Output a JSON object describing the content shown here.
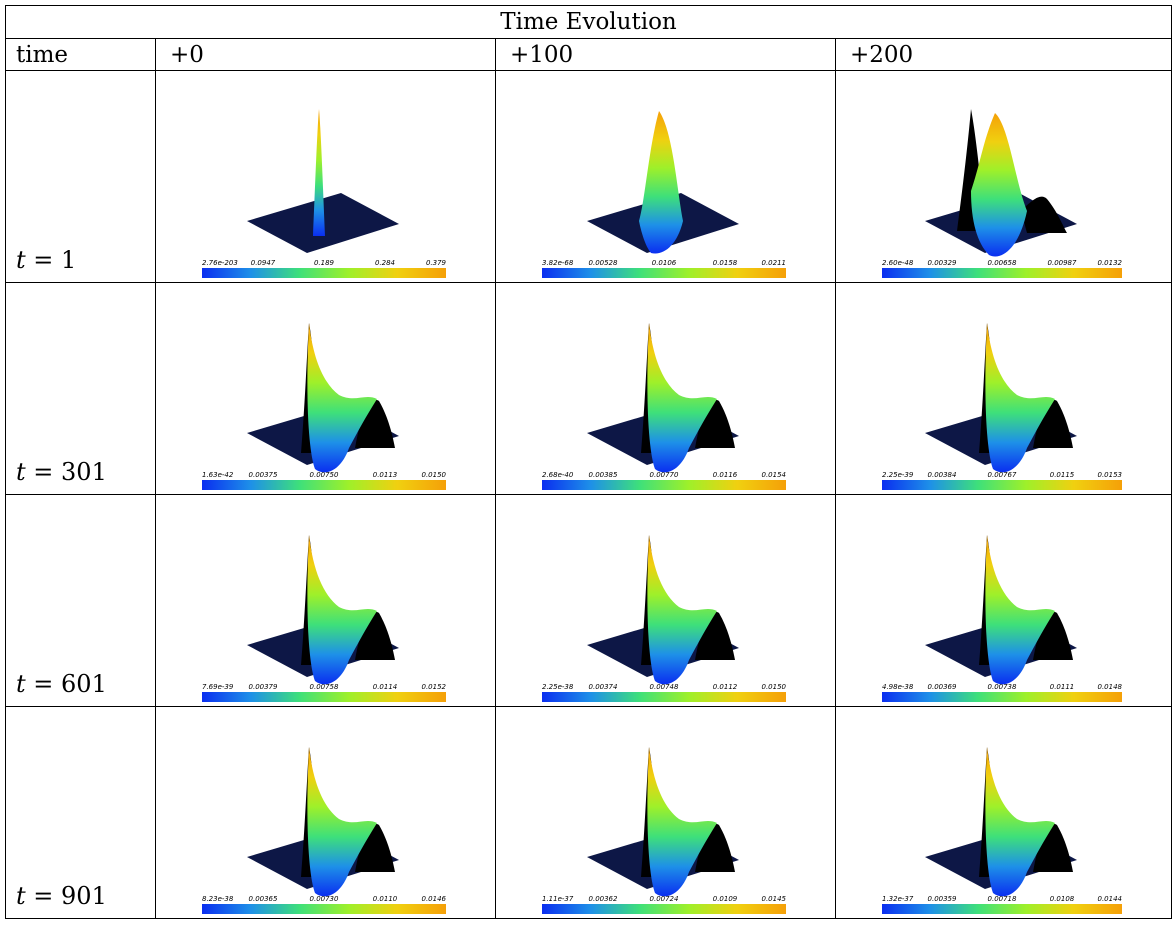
{
  "table": {
    "title": "Time Evolution",
    "header": [
      "time",
      "+0",
      "+100",
      "+200"
    ],
    "rows": [
      {
        "t_var": "t",
        "t_eq": "= 1",
        "panels": [
          {
            "peak_type": "spike",
            "ticks": [
              "2.76e-203",
              "0.0947",
              "0.189",
              "0.284",
              "0.379"
            ]
          },
          {
            "peak_type": "single",
            "ticks": [
              "3.82e-68",
              "0.00528",
              "0.0106",
              "0.0158",
              "0.0211"
            ]
          },
          {
            "peak_type": "double",
            "ticks": [
              "2.60e-48",
              "0.00329",
              "0.00658",
              "0.00987",
              "0.0132"
            ]
          }
        ]
      },
      {
        "t_var": "t",
        "t_eq": "= 301",
        "panels": [
          {
            "peak_type": "wave",
            "ticks": [
              "1.63e-42",
              "0.00375",
              "0.00750",
              "0.0113",
              "0.0150"
            ]
          },
          {
            "peak_type": "wave",
            "ticks": [
              "2.68e-40",
              "0.00385",
              "0.00770",
              "0.0116",
              "0.0154"
            ]
          },
          {
            "peak_type": "wave",
            "ticks": [
              "2.25e-39",
              "0.00384",
              "0.00767",
              "0.0115",
              "0.0153"
            ]
          }
        ]
      },
      {
        "t_var": "t",
        "t_eq": "= 601",
        "panels": [
          {
            "peak_type": "wave",
            "ticks": [
              "7.69e-39",
              "0.00379",
              "0.00758",
              "0.0114",
              "0.0152"
            ]
          },
          {
            "peak_type": "wave",
            "ticks": [
              "2.25e-38",
              "0.00374",
              "0.00748",
              "0.0112",
              "0.0150"
            ]
          },
          {
            "peak_type": "wave",
            "ticks": [
              "4.98e-38",
              "0.00369",
              "0.00738",
              "0.0111",
              "0.0148"
            ]
          }
        ]
      },
      {
        "t_var": "t",
        "t_eq": "= 901",
        "panels": [
          {
            "peak_type": "wave",
            "ticks": [
              "8.23e-38",
              "0.00365",
              "0.00730",
              "0.0110",
              "0.0146"
            ]
          },
          {
            "peak_type": "wave",
            "ticks": [
              "1.11e-37",
              "0.00362",
              "0.00724",
              "0.0109",
              "0.0145"
            ]
          },
          {
            "peak_type": "wave",
            "ticks": [
              "1.32e-37",
              "0.00359",
              "0.00718",
              "0.0108",
              "0.0144"
            ]
          }
        ]
      }
    ]
  },
  "colors": {
    "colormap": [
      "#0a2ef0",
      "#1e90e8",
      "#3ee07a",
      "#9ef02a",
      "#f0d010",
      "#f5a008"
    ],
    "plane": "#0d1746",
    "shadow": "#000000"
  }
}
